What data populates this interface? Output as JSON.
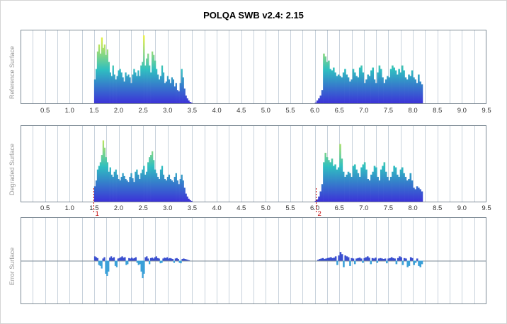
{
  "title": "POLQA SWB v2.4: 2.15",
  "colors": {
    "grid": "#c8d2dc",
    "border": "#7f8c96",
    "baseline": "#7a8a94",
    "grad_low": "#3c2fd8",
    "grad_mid": "#2fbfc0",
    "grad_high": "#f2f43a",
    "error_pos": "#3a4fd0",
    "error_neg": "#3aa0d8",
    "marker": "#c00000"
  },
  "chart_data": [
    {
      "type": "bar",
      "name_label": "Reference Surface",
      "x_ticks": [
        "0.5",
        "1.0",
        "1.5",
        "2.0",
        "2.5",
        "3.0",
        "3.5",
        "4.0",
        "4.5",
        "5.0",
        "5.5",
        "6.0",
        "6.5",
        "7.0",
        "7.5",
        "8.0",
        "8.5",
        "9.0",
        "9.5"
      ],
      "xlim": [
        0,
        9.5
      ],
      "segments": [
        {
          "x_start": 1.5,
          "x_end": 3.5,
          "values": [
            0.35,
            0.5,
            0.75,
            0.85,
            0.72,
            0.95,
            0.8,
            0.85,
            0.7,
            0.78,
            0.6,
            0.45,
            0.4,
            0.55,
            0.42,
            0.35,
            0.4,
            0.48,
            0.5,
            0.45,
            0.38,
            0.32,
            0.45,
            0.4,
            0.42,
            0.38,
            0.3,
            0.42,
            0.5,
            0.45,
            0.4,
            0.48,
            0.4,
            0.55,
            0.6,
            0.98,
            0.55,
            0.65,
            0.72,
            0.55,
            0.45,
            0.75,
            0.7,
            0.62,
            0.5,
            0.42,
            0.35,
            0.4,
            0.55,
            0.45,
            0.3,
            0.32,
            0.4,
            0.35,
            0.3,
            0.38,
            0.35,
            0.25,
            0.3,
            0.2,
            0.18,
            0.3,
            0.5,
            0.38,
            0.22,
            0.12,
            0.08,
            0.05,
            0.03,
            0.02
          ]
        },
        {
          "x_start": 6.0,
          "x_end": 8.2,
          "values": [
            0.02,
            0.05,
            0.08,
            0.12,
            0.2,
            0.72,
            0.68,
            0.6,
            0.62,
            0.5,
            0.48,
            0.52,
            0.45,
            0.4,
            0.42,
            0.4,
            0.38,
            0.45,
            0.5,
            0.42,
            0.38,
            0.32,
            0.35,
            0.5,
            0.45,
            0.4,
            0.38,
            0.52,
            0.55,
            0.45,
            0.3,
            0.35,
            0.42,
            0.4,
            0.48,
            0.52,
            0.35,
            0.3,
            0.45,
            0.55,
            0.5,
            0.38,
            0.3,
            0.35,
            0.4,
            0.38,
            0.5,
            0.55,
            0.52,
            0.48,
            0.42,
            0.5,
            0.45,
            0.55,
            0.48,
            0.38,
            0.35,
            0.42,
            0.4,
            0.48,
            0.38,
            0.35,
            0.3,
            0.42,
            0.32,
            0.28
          ]
        }
      ],
      "markers": []
    },
    {
      "type": "bar",
      "name_label": "Degraded Surface",
      "x_ticks": [
        "0.5",
        "1.0",
        "1.5",
        "2.0",
        "2.5",
        "3.0",
        "3.5",
        "4.0",
        "4.5",
        "5.0",
        "5.5",
        "6.0",
        "6.5",
        "7.0",
        "7.5",
        "8.0",
        "8.5",
        "9.0",
        "9.5"
      ],
      "xlim": [
        0,
        9.5
      ],
      "segments": [
        {
          "x_start": 1.5,
          "x_end": 3.5,
          "values": [
            0.22,
            0.3,
            0.45,
            0.5,
            0.55,
            0.65,
            0.85,
            0.75,
            0.62,
            0.55,
            0.42,
            0.48,
            0.38,
            0.35,
            0.42,
            0.45,
            0.38,
            0.32,
            0.3,
            0.35,
            0.4,
            0.36,
            0.32,
            0.3,
            0.28,
            0.35,
            0.4,
            0.33,
            0.28,
            0.42,
            0.45,
            0.38,
            0.32,
            0.4,
            0.45,
            0.5,
            0.38,
            0.42,
            0.55,
            0.62,
            0.65,
            0.7,
            0.58,
            0.45,
            0.4,
            0.35,
            0.32,
            0.45,
            0.5,
            0.38,
            0.32,
            0.3,
            0.35,
            0.38,
            0.32,
            0.3,
            0.28,
            0.35,
            0.4,
            0.3,
            0.25,
            0.32,
            0.38,
            0.3,
            0.2,
            0.12,
            0.08,
            0.05,
            0.03,
            0.02
          ]
        },
        {
          "x_start": 6.0,
          "x_end": 8.2,
          "values": [
            0.02,
            0.04,
            0.08,
            0.15,
            0.25,
            0.55,
            0.68,
            0.62,
            0.58,
            0.55,
            0.6,
            0.5,
            0.52,
            0.45,
            0.48,
            0.8,
            0.6,
            0.42,
            0.35,
            0.38,
            0.42,
            0.4,
            0.35,
            0.5,
            0.52,
            0.45,
            0.4,
            0.35,
            0.48,
            0.52,
            0.55,
            0.45,
            0.32,
            0.3,
            0.38,
            0.42,
            0.5,
            0.48,
            0.35,
            0.3,
            0.45,
            0.5,
            0.55,
            0.42,
            0.35,
            0.3,
            0.35,
            0.42,
            0.5,
            0.48,
            0.38,
            0.35,
            0.45,
            0.48,
            0.4,
            0.35,
            0.3,
            0.32,
            0.4,
            0.3,
            0.2,
            0.18,
            0.22,
            0.2,
            0.18,
            0.15
          ]
        }
      ],
      "markers": [
        {
          "x": 1.48,
          "label": "1"
        },
        {
          "x": 6.02,
          "label": "2"
        }
      ]
    },
    {
      "type": "bar",
      "name_label": "Error Surface",
      "xlim": [
        0,
        9.5
      ],
      "ylim": [
        -1,
        1
      ],
      "segments": [
        {
          "x_start": 1.5,
          "x_end": 3.45,
          "values": [
            0.1,
            0.08,
            0.06,
            -0.1,
            -0.12,
            -0.18,
            0.05,
            0.08,
            -0.3,
            -0.35,
            -0.25,
            0.07,
            0.1,
            0.06,
            0.08,
            -0.12,
            -0.15,
            0.05,
            0.06,
            0.08,
            0.1,
            0.07,
            0.08,
            -0.1,
            -0.08,
            0.06,
            0.05,
            0.07,
            0.05,
            0.06,
            0.08,
            -0.05,
            -0.1,
            -0.08,
            -0.25,
            -0.4,
            -0.3,
            0.08,
            0.1,
            0.05,
            -0.08,
            0.06,
            0.07,
            0.05,
            0.08,
            0.1,
            0.06,
            0.05,
            -0.06,
            -0.05,
            0.05,
            0.07,
            0.06,
            0.08,
            0.05,
            0.06,
            0.05,
            0.04,
            -0.05,
            0.05,
            0.06,
            0.04,
            -0.05,
            -0.06,
            0.04,
            0.05,
            0.04,
            0.03,
            0.02,
            0.01
          ]
        },
        {
          "x_start": 6.05,
          "x_end": 8.2,
          "values": [
            0.02,
            0.04,
            0.05,
            0.06,
            0.04,
            0.05,
            0.06,
            0.07,
            0.08,
            0.06,
            0.07,
            0.1,
            -0.1,
            0.12,
            0.2,
            0.15,
            -0.15,
            0.12,
            0.1,
            0.08,
            -0.12,
            0.06,
            0.05,
            -0.08,
            0.05,
            0.06,
            0.07,
            0.05,
            -0.05,
            0.06,
            0.08,
            0.1,
            0.07,
            -0.08,
            0.06,
            0.05,
            0.07,
            -0.05,
            0.05,
            0.06,
            0.05,
            0.04,
            0.05,
            -0.06,
            0.05,
            0.06,
            0.08,
            0.06,
            0.05,
            -0.08,
            0.06,
            0.1,
            0.08,
            -0.1,
            0.06,
            0.05,
            -0.15,
            -0.12,
            0.08,
            0.06,
            -0.1,
            -0.05,
            0.05,
            -0.12,
            -0.15,
            -0.08
          ]
        }
      ],
      "markers": []
    }
  ]
}
